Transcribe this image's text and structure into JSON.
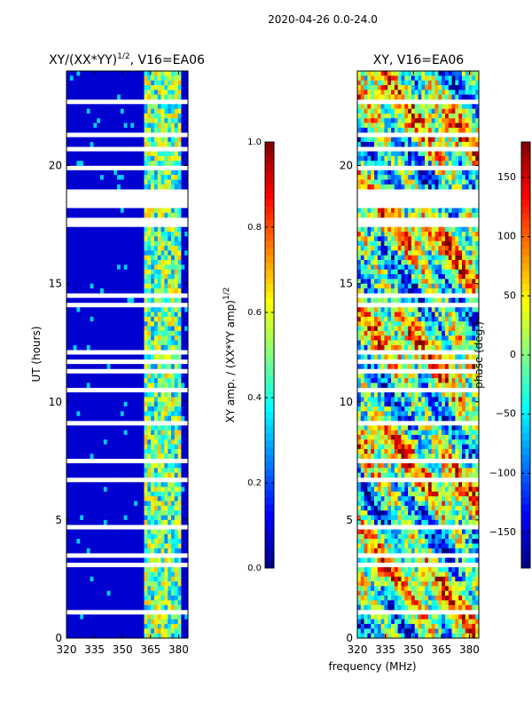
{
  "figure_title": "2020-04-26 0.0-24.0",
  "xlabel": "frequency (MHz)",
  "chart_data": [
    {
      "type": "heatmap",
      "title_main": "XY/(XX*YY)",
      "title_sup": "1/2",
      "title_tail": ", V16=EA06",
      "ylabel": "UT (hours)",
      "xlim": [
        320,
        385
      ],
      "ylim": [
        0,
        24
      ],
      "xticks": [
        320,
        335,
        350,
        365,
        380
      ],
      "yticks": [
        0,
        5,
        10,
        15,
        20
      ],
      "colorbar": {
        "label_main": "XY amp. / (XX*YY amp)",
        "label_sup": "1/2",
        "range": [
          0.0,
          1.0
        ],
        "ticks": [
          "0.0",
          "0.2",
          "0.4",
          "0.6",
          "0.8",
          "1.0"
        ]
      },
      "colormap": [
        "#00007f",
        "#0000ff",
        "#007fff",
        "#00ffff",
        "#7fff7f",
        "#ffff00",
        "#ff7f00",
        "#ff0000",
        "#7f0000"
      ],
      "background_value": 0.08,
      "bright_band_mhz": [
        362,
        382
      ],
      "data_gaps_hours": [
        [
          18.2,
          19.0
        ]
      ]
    },
    {
      "type": "heatmap",
      "title": "XY, V16=EA06",
      "xlim": [
        320,
        385
      ],
      "ylim": [
        0,
        24
      ],
      "xticks": [
        320,
        335,
        350,
        365,
        380
      ],
      "yticks": [
        0,
        5,
        10,
        15,
        20
      ],
      "colorbar": {
        "label": "phase (deg.)",
        "range": [
          -180,
          180
        ],
        "ticks": [
          "−150",
          "−100",
          "−50",
          "0",
          "50",
          "100",
          "150"
        ]
      },
      "colormap": [
        "#00007f",
        "#0000ff",
        "#007fff",
        "#00ffff",
        "#7fff7f",
        "#ffff00",
        "#ff7f00",
        "#ff0000",
        "#7f0000"
      ],
      "data_gaps_hours": [
        [
          18.2,
          19.0
        ]
      ]
    }
  ]
}
